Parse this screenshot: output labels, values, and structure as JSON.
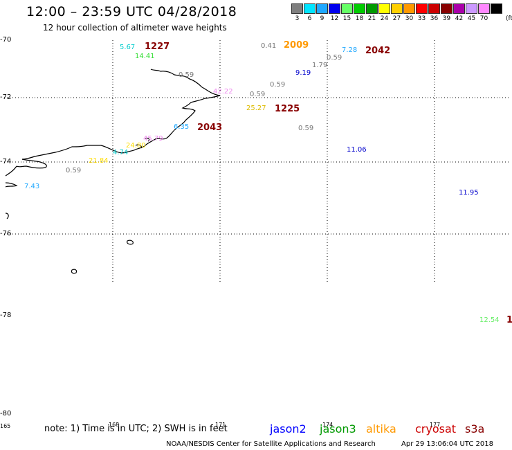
{
  "header": {
    "title": "12:00 – 23:59 UTC 04/28/2018",
    "subtitle": "12 hour collection of altimeter wave heights"
  },
  "legend": {
    "unit": "(ft)",
    "bins": [
      {
        "label": "3",
        "color": "#7f7f7f"
      },
      {
        "label": "6",
        "color": "#00e5ff"
      },
      {
        "label": "9",
        "color": "#1fa8ff"
      },
      {
        "label": "12",
        "color": "#0000ee"
      },
      {
        "label": "15",
        "color": "#66ff66"
      },
      {
        "label": "18",
        "color": "#00cc00"
      },
      {
        "label": "21",
        "color": "#009900"
      },
      {
        "label": "24",
        "color": "#ffff00"
      },
      {
        "label": "27",
        "color": "#ffd000"
      },
      {
        "label": "30",
        "color": "#ff9900"
      },
      {
        "label": "33",
        "color": "#ff0000"
      },
      {
        "label": "36",
        "color": "#cc0000"
      },
      {
        "label": "39",
        "color": "#880000"
      },
      {
        "label": "42",
        "color": "#aa00aa"
      },
      {
        "label": "45",
        "color": "#cc99ff"
      },
      {
        "label": "70",
        "color": "#ff88ff"
      },
      {
        "label": "",
        "color": "#000000"
      }
    ]
  },
  "map": {
    "lat_labels": [
      "-70",
      "-72",
      "-74",
      "-76",
      "-78",
      "-80"
    ],
    "lon_labels": [
      "165",
      "168",
      "171",
      "174",
      "177"
    ]
  },
  "observations": [
    {
      "text": "5.67",
      "color": "#00cccc"
    },
    {
      "text": "14.41",
      "color": "#33dd33"
    },
    {
      "text": "0.41",
      "color": "#777777"
    },
    {
      "text": "7.28",
      "color": "#1fa8ff"
    },
    {
      "text": "0.59",
      "color": "#777777"
    },
    {
      "text": "1.79",
      "color": "#777777"
    },
    {
      "text": "9.19",
      "color": "#0000cc"
    },
    {
      "text": "0.59",
      "color": "#777777"
    },
    {
      "text": "0.59",
      "color": "#777777"
    },
    {
      "text": "42.22",
      "color": "#ee88ee"
    },
    {
      "text": "0.59",
      "color": "#777777"
    },
    {
      "text": "25.27",
      "color": "#ddbb00"
    },
    {
      "text": "6.35",
      "color": "#1fa8ff"
    },
    {
      "text": "0.59",
      "color": "#777777"
    },
    {
      "text": "45.79",
      "color": "#ee88ee"
    },
    {
      "text": "24.80",
      "color": "#ffdd00"
    },
    {
      "text": "4.74",
      "color": "#00cccc"
    },
    {
      "text": "11.06",
      "color": "#0000cc"
    },
    {
      "text": "21.84",
      "color": "#ffdd00"
    },
    {
      "text": "0.59",
      "color": "#777777"
    },
    {
      "text": "7.43",
      "color": "#1fa8ff"
    },
    {
      "text": "11.95",
      "color": "#0000cc"
    },
    {
      "text": "12.54",
      "color": "#66ee66"
    }
  ],
  "cycles": [
    {
      "text": "1227",
      "color": "#880000"
    },
    {
      "text": "2009",
      "color": "#ff9900"
    },
    {
      "text": "2042",
      "color": "#880000"
    },
    {
      "text": "1225",
      "color": "#880000"
    },
    {
      "text": "2043",
      "color": "#880000"
    },
    {
      "text": "1",
      "color": "#880000"
    }
  ],
  "footer": {
    "note": "note: 1) Time is in UTC; 2) SWH is in feet",
    "satellites": [
      {
        "name": "jason2",
        "color": "#0000ff"
      },
      {
        "name": "jason3",
        "color": "#009900"
      },
      {
        "name": "altika",
        "color": "#ff9900"
      },
      {
        "name": "cryosat",
        "color": "#cc0000"
      },
      {
        "name": "s3a",
        "color": "#880000"
      }
    ],
    "credit": "NOAA/NESDIS Center for Satellite Applications and Research",
    "timestamp": "Apr 29 13:06:04 UTC 2018"
  }
}
